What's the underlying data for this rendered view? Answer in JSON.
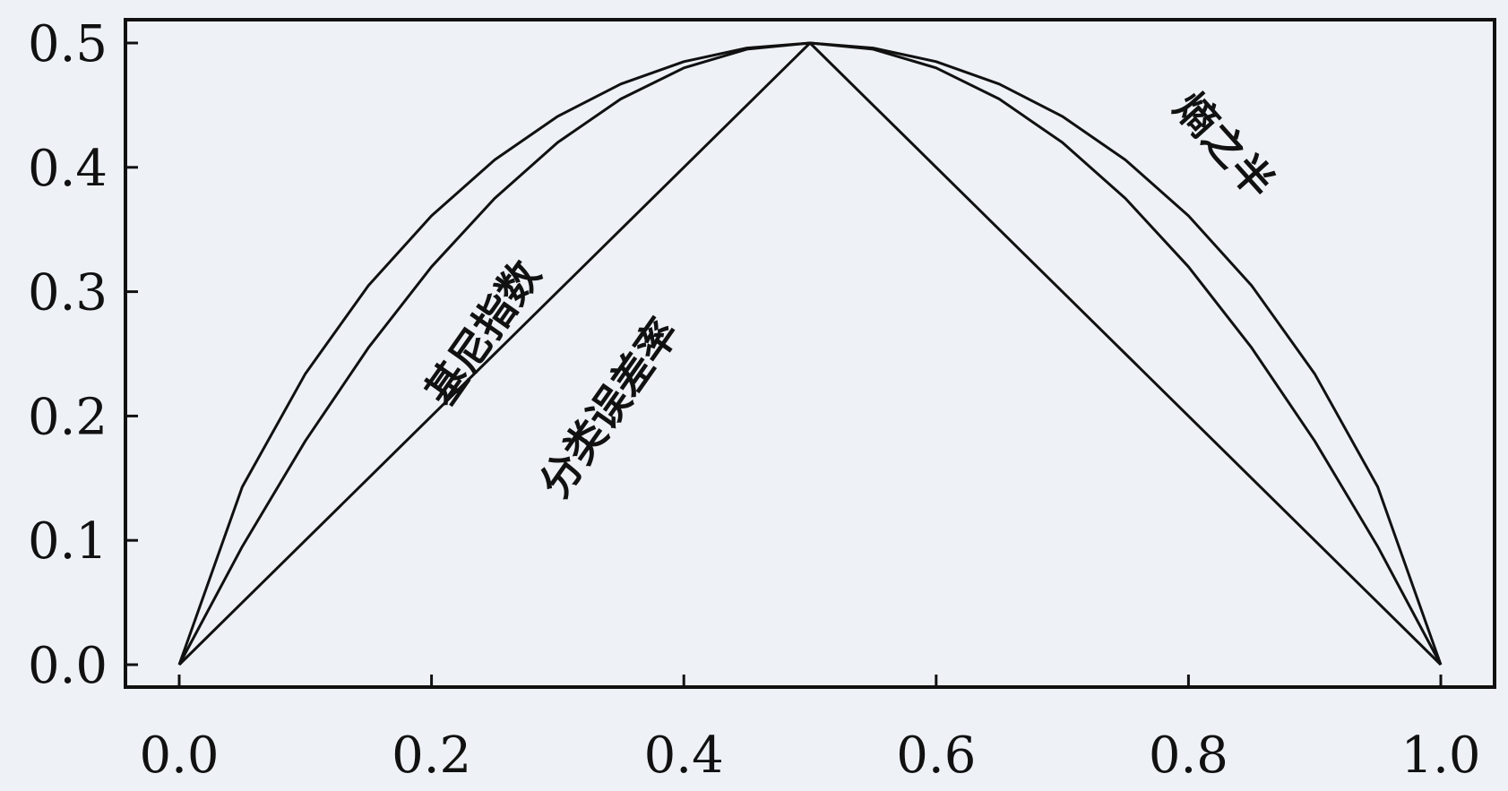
{
  "chart_data": {
    "type": "line",
    "title": "",
    "xlabel": "",
    "ylabel": "",
    "xlim": [
      0.0,
      1.0
    ],
    "ylim": [
      0.0,
      0.5
    ],
    "x_ticks": [
      "0.0",
      "0.2",
      "0.4",
      "0.6",
      "0.8",
      "1.0"
    ],
    "y_ticks": [
      "0.0",
      "0.1",
      "0.2",
      "0.3",
      "0.4",
      "0.5"
    ],
    "grid": false,
    "legend": "none",
    "line_color": "#111111",
    "background": "#eef2f7",
    "x": [
      0.0,
      0.05,
      0.1,
      0.15,
      0.2,
      0.25,
      0.3,
      0.35,
      0.4,
      0.45,
      0.5,
      0.55,
      0.6,
      0.65,
      0.7,
      0.75,
      0.8,
      0.85,
      0.9,
      0.95,
      1.0
    ],
    "series": [
      {
        "name": "",
        "values": [
          0.0,
          0.143,
          0.234,
          0.305,
          0.361,
          0.406,
          0.441,
          0.467,
          0.485,
          0.496,
          0.5,
          0.496,
          0.485,
          0.467,
          0.441,
          0.406,
          0.361,
          0.305,
          0.234,
          0.143,
          0.0
        ]
      },
      {
        "name": "",
        "values": [
          0.0,
          0.095,
          0.18,
          0.255,
          0.32,
          0.375,
          0.42,
          0.455,
          0.48,
          0.495,
          0.5,
          0.495,
          0.48,
          0.455,
          0.42,
          0.375,
          0.32,
          0.255,
          0.18,
          0.095,
          0.0
        ]
      },
      {
        "name": "",
        "values": [
          0.0,
          0.05,
          0.1,
          0.15,
          0.2,
          0.25,
          0.3,
          0.35,
          0.4,
          0.45,
          0.5,
          0.45,
          0.4,
          0.35,
          0.3,
          0.25,
          0.2,
          0.15,
          0.1,
          0.05,
          0.0
        ]
      }
    ],
    "annotations": [
      {
        "text": "基尼指数",
        "x": 0.25,
        "y": 0.26,
        "angle": -55
      },
      {
        "text": "分类误差率",
        "x": 0.35,
        "y": 0.2,
        "angle": -55
      },
      {
        "text": "熵之半",
        "x": 0.82,
        "y": 0.41,
        "angle": 48
      }
    ]
  }
}
